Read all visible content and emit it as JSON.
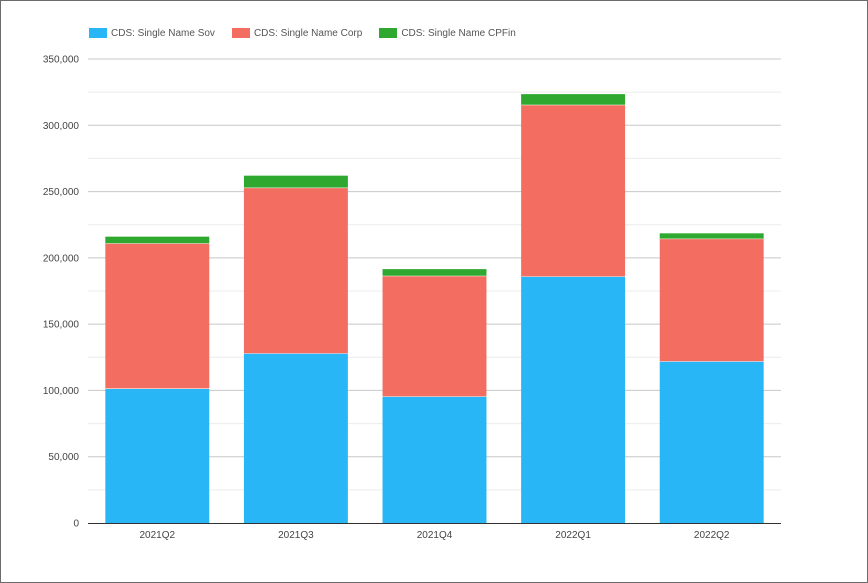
{
  "chart_data": {
    "type": "bar",
    "stacked": true,
    "categories": [
      "2021Q2",
      "2021Q3",
      "2021Q4",
      "2022Q1",
      "2022Q2"
    ],
    "series": [
      {
        "name": "CDS: Single Name Sov",
        "color": "#29b6f6",
        "values": [
          101500,
          128000,
          95500,
          186000,
          122000
        ]
      },
      {
        "name": "CDS: Single Name Corp",
        "color": "#f36e60",
        "values": [
          109500,
          125000,
          91000,
          129500,
          92500
        ]
      },
      {
        "name": "CDS: Single Name CPFin",
        "color": "#2ea82e",
        "values": [
          5000,
          9000,
          5000,
          8000,
          4000
        ]
      }
    ],
    "ylim": [
      0,
      350000
    ],
    "yticks": [
      0,
      50000,
      100000,
      150000,
      200000,
      250000,
      300000,
      350000
    ],
    "ytick_labels": [
      "0",
      "50,000",
      "100,000",
      "150,000",
      "200,000",
      "250,000",
      "300,000",
      "350,000"
    ],
    "grid": true,
    "legend_position": "top-left",
    "title": "",
    "xlabel": "",
    "ylabel": ""
  }
}
